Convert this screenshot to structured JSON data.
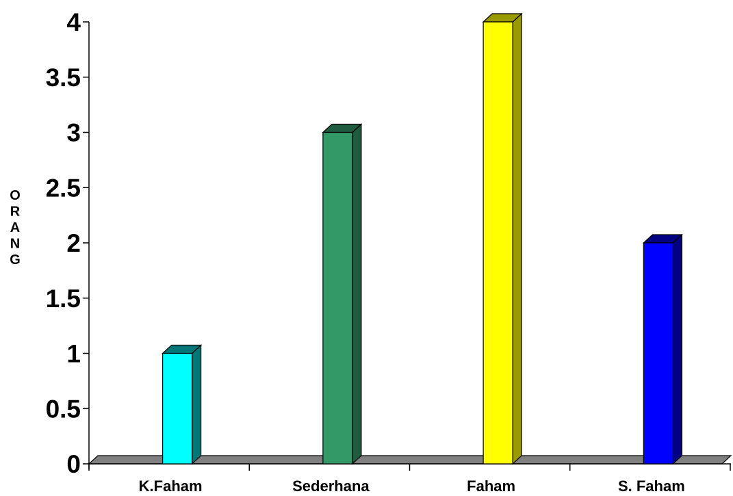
{
  "chart_data": {
    "type": "bar",
    "categories": [
      "K.Faham",
      "Sederhana",
      "Faham",
      "S. Faham"
    ],
    "values": [
      1,
      3,
      4,
      2
    ],
    "title": "",
    "xlabel": "",
    "ylabel": "ORANG",
    "ylim": [
      0,
      4
    ],
    "yticks": [
      "0",
      "0.5",
      "1",
      "1.5",
      "2",
      "2.5",
      "3",
      "3.5",
      "4"
    ],
    "grid": false,
    "legend": "none",
    "bar_3d": true,
    "colors": {
      "bars": [
        "#00ffff",
        "#339966",
        "#ffff00",
        "#0000ff"
      ],
      "bar_sides": [
        "#007777",
        "#1f5c3d",
        "#999900",
        "#000080"
      ],
      "floor": "#808080"
    }
  }
}
